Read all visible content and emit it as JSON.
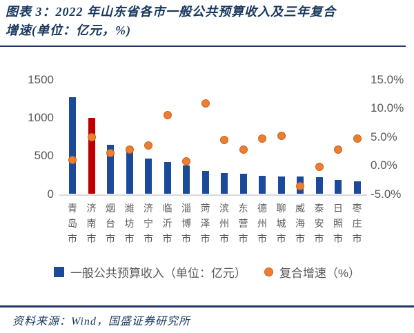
{
  "header": {
    "title_line1": "图表 3：2022 年山东省各市一般公共预算收入及三年复合",
    "title_line2": "增速(单位：亿元，%)"
  },
  "chart_data": {
    "type": "bar",
    "title": "2022 年山东省各市一般公共预算收入及三年复合增速",
    "categories": [
      "青岛市",
      "济南市",
      "烟台市",
      "潍坊市",
      "济宁市",
      "临沂市",
      "淄博市",
      "菏泽市",
      "滨州市",
      "东营市",
      "德州市",
      "聊城市",
      "威海市",
      "泰安市",
      "日照市",
      "枣庄市"
    ],
    "series": [
      {
        "name": "一般公共预算收入（单位：亿元）",
        "type": "bar",
        "axis": "left",
        "values": [
          1273,
          1000,
          647,
          606,
          466,
          424,
          377,
          304,
          279,
          268,
          240,
          228,
          232,
          224,
          181,
          171
        ],
        "highlight_index": 1
      },
      {
        "name": "复合增速（%）",
        "type": "scatter",
        "axis": "right",
        "values": [
          1.0,
          4.9,
          2.2,
          2.8,
          3.5,
          8.8,
          0.7,
          10.9,
          4.5,
          2.8,
          4.7,
          5.2,
          -3.6,
          -0.3,
          2.8,
          4.7
        ]
      }
    ],
    "left_axis": {
      "min": 0,
      "max": 1500,
      "tick_values": [
        1500,
        1000,
        500,
        0
      ],
      "tick_labels": [
        "1500",
        "1000",
        "500",
        "0"
      ]
    },
    "right_axis": {
      "min": -5,
      "max": 15,
      "tick_values": [
        15,
        10,
        5,
        0,
        -5
      ],
      "tick_labels": [
        "15.0%",
        "10.0%",
        "5.0%",
        "0.0%",
        "-5.0%"
      ]
    },
    "grid": "baseline-only",
    "legend_position": "bottom-center"
  },
  "legend": {
    "items": [
      {
        "label": "一般公共预算收入（单位：亿元）",
        "marker": "square",
        "color": "#1B4A9B"
      },
      {
        "label": "复合增速（%）",
        "marker": "circle",
        "color": "#ED7D31"
      }
    ]
  },
  "footer": {
    "source": "资料来源：Wind，国盛证券研究所"
  },
  "colors": {
    "bar_blue": "#1B4A9B",
    "bar_highlight_red": "#C00000",
    "dot_orange": "#ED7D31",
    "dot_border": "#C8651B",
    "title_navy": "#17375E",
    "axis_text": "#595959",
    "baseline_gray": "#D9D9D9",
    "rule_navy": "#1F3864"
  }
}
